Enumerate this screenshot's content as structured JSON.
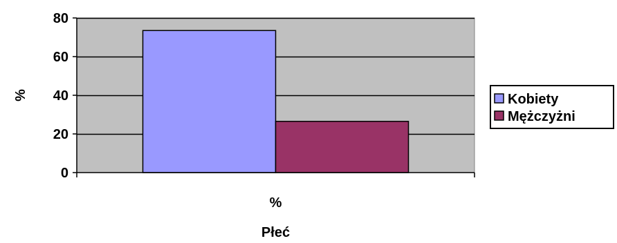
{
  "chart_data": {
    "type": "bar",
    "categories": [
      "%"
    ],
    "series": [
      {
        "name": "Kobiety",
        "values": [
          73.5
        ],
        "color": "#9999ff"
      },
      {
        "name": "Mężczyżni",
        "values": [
          26.5
        ],
        "color": "#993366"
      }
    ],
    "xlabel": "Płeć",
    "ylabel": "%",
    "ylim": [
      0,
      80
    ],
    "yticks": [
      "0",
      "20",
      "40",
      "60",
      "80"
    ],
    "grid": true,
    "plot_background": "#c0c0c0",
    "legend_position": "right"
  }
}
